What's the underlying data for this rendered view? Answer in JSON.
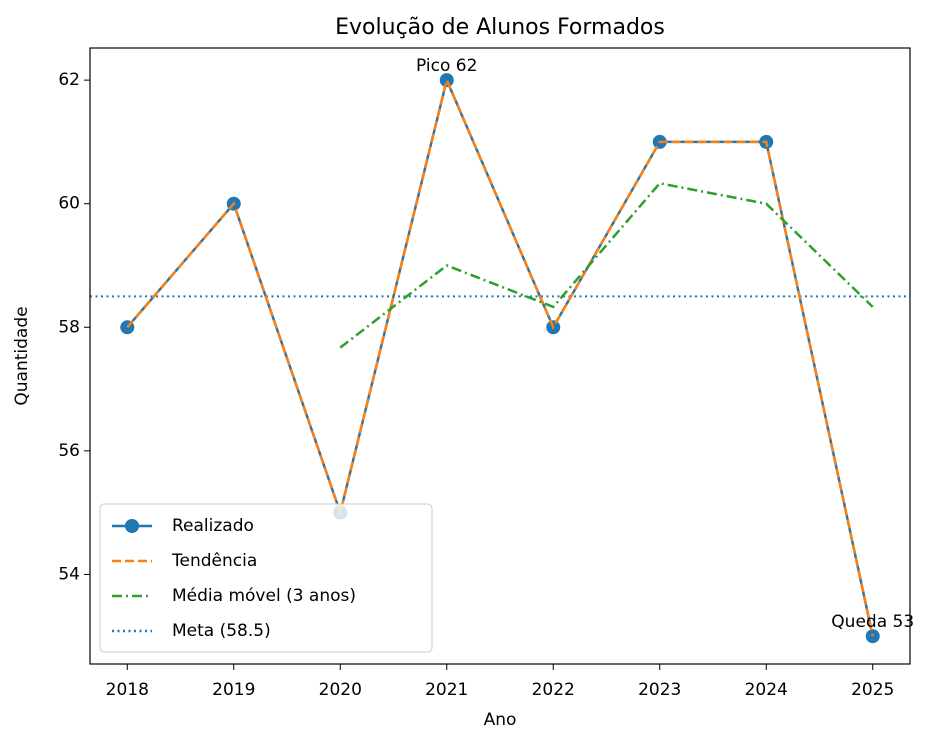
{
  "chart_data": {
    "type": "line",
    "title": "Evolução de Alunos Formados",
    "x_label": "Ano",
    "y_label": "Quantidade",
    "x": [
      2018,
      2019,
      2020,
      2021,
      2022,
      2023,
      2024,
      2025
    ],
    "series": [
      {
        "name": "Realizado",
        "color": "#1f77b4",
        "style": "solid",
        "marker": true,
        "values": [
          58,
          60,
          55,
          62,
          58,
          61,
          61,
          53
        ]
      },
      {
        "name": "Tendência",
        "color": "#ff7f0e",
        "style": "dashed",
        "marker": false,
        "values": [
          58,
          60,
          55,
          62,
          58,
          61,
          61,
          53
        ]
      },
      {
        "name": "Média móvel (3 anos)",
        "color": "#2ca02c",
        "style": "dashdot",
        "marker": false,
        "values": [
          null,
          null,
          57.67,
          59,
          58.33,
          60.33,
          60,
          58.33
        ]
      }
    ],
    "reference_line": {
      "name": "Meta (58.5)",
      "value": 58.5,
      "color": "#1f77b4",
      "style": "dotted"
    },
    "annotations": [
      {
        "text": "Pico 62",
        "x": 2021,
        "y": 62
      },
      {
        "text": "Queda 53",
        "x": 2025,
        "y": 53
      }
    ],
    "xlim": [
      2017.65,
      2025.35
    ],
    "xticks": [
      2018,
      2019,
      2020,
      2021,
      2022,
      2023,
      2024,
      2025
    ],
    "ylim": [
      52.55,
      62.52
    ],
    "yticks": [
      54,
      56,
      58,
      60,
      62
    ],
    "legend": "lower left",
    "grid": false
  }
}
